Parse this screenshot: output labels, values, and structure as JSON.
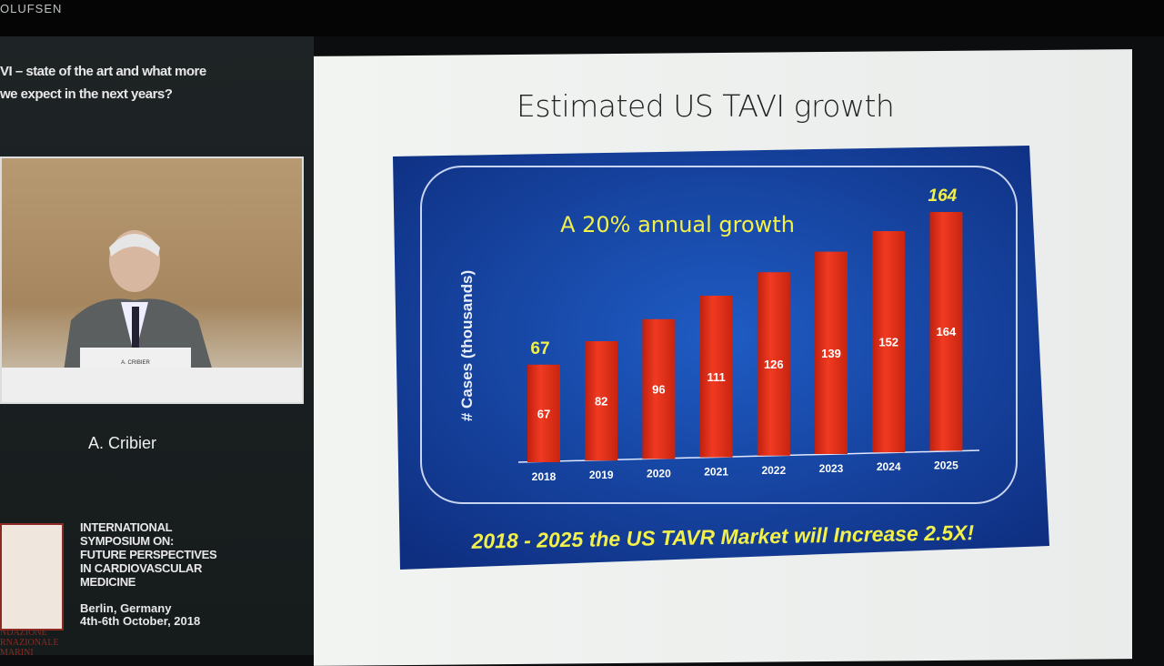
{
  "header": {
    "brand": "OLUFSEN"
  },
  "talk": {
    "line1": "VI – state of the art and what more",
    "line2": " we expect in the next years?"
  },
  "speaker": {
    "name": "A. Cribier",
    "podium_label": "A. CRIBIER"
  },
  "event": {
    "lines": [
      "INTERNATIONAL",
      "SYMPOSIUM ON:",
      "FUTURE PERSPECTIVES",
      "IN CARDIOVASCULAR",
      "MEDICINE"
    ],
    "location": "Berlin, Germany",
    "dates": "4th-6th October, 2018",
    "logo_text": "NDAZIONE\nRNAZIONALE\nMARINI"
  },
  "slide": {
    "title": "Estimated US TAVI growth"
  },
  "chart_data": {
    "type": "bar",
    "title": "A 20% annual growth",
    "ylabel": "# Cases (thousands)",
    "xlabel": "",
    "categories": [
      "2018",
      "2019",
      "2020",
      "2021",
      "2022",
      "2023",
      "2024",
      "2025"
    ],
    "values": [
      67,
      82,
      96,
      111,
      126,
      139,
      152,
      164
    ],
    "highlight_labels": {
      "2018": "67",
      "2025": "164"
    },
    "footer": "2018 - 2025 the US TAVR Market will Increase 2.5X!",
    "ylim": [
      0,
      170
    ],
    "grid": false,
    "colors": {
      "bar": "#e8321e",
      "background": "#1646a8",
      "title": "#f2f04a",
      "footer": "#f2f04a"
    }
  }
}
